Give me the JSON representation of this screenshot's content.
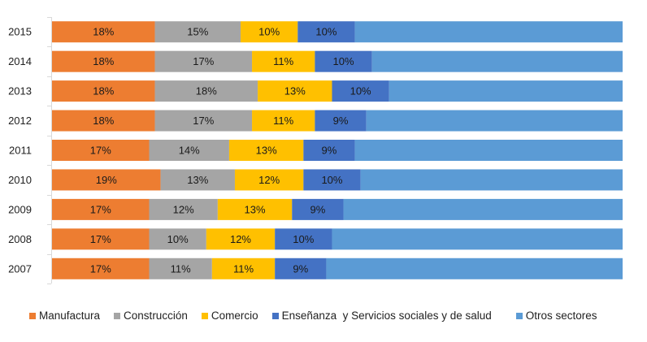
{
  "chart_data": {
    "type": "bar",
    "orientation": "horizontal",
    "stacked": "percent",
    "title": "",
    "xlabel": "",
    "ylabel": "",
    "xlim": [
      0,
      100
    ],
    "grid": false,
    "legend_position": "bottom",
    "categories": [
      "2015",
      "2014",
      "2013",
      "2012",
      "2011",
      "2010",
      "2009",
      "2008",
      "2007"
    ],
    "series": [
      {
        "name": "Manufactura",
        "color": "#ED7D31",
        "values": [
          18,
          18,
          18,
          18,
          17,
          19,
          17,
          17,
          17
        ],
        "show_labels": true
      },
      {
        "name": "Construcción",
        "color": "#A5A5A5",
        "values": [
          15,
          17,
          18,
          17,
          14,
          13,
          12,
          10,
          11
        ],
        "show_labels": true
      },
      {
        "name": "Comercio",
        "color": "#FFC000",
        "values": [
          10,
          11,
          13,
          11,
          13,
          12,
          13,
          12,
          11
        ],
        "show_labels": true
      },
      {
        "name": "Enseñanza  y Servicios sociales y de salud",
        "color": "#4472C4",
        "values": [
          10,
          10,
          10,
          9,
          9,
          10,
          9,
          10,
          9
        ],
        "show_labels": true
      },
      {
        "name": "Otros sectores",
        "color": "#5B9BD5",
        "values": [
          47,
          44,
          41,
          45,
          47,
          46,
          49,
          51,
          52
        ],
        "show_labels": false
      }
    ],
    "label_format": "{v}%"
  }
}
